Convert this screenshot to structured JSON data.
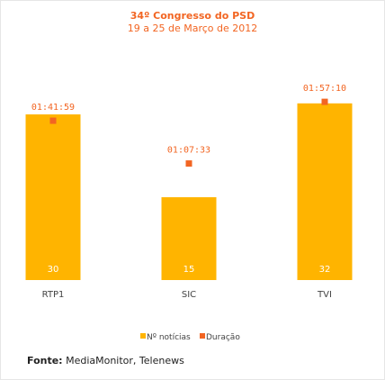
{
  "chart_data": {
    "type": "bar",
    "title": "34º Congresso do PSD",
    "subtitle": "19 a 25 de Março de 2012",
    "categories": [
      "RTP1",
      "SIC",
      "TVI"
    ],
    "series": [
      {
        "name": "Nº notícias",
        "values": [
          30,
          15,
          32
        ],
        "color": "#ffb400"
      },
      {
        "name": "Duração",
        "values": [
          "01:41:59",
          "01:07:33",
          "01:57:10"
        ],
        "color": "#f26522"
      }
    ],
    "ylim": [
      0,
      38
    ],
    "legend_position": "bottom-center",
    "grid": false
  },
  "source": {
    "label": "Fonte:",
    "text": " MediaMonitor, Telenews"
  }
}
